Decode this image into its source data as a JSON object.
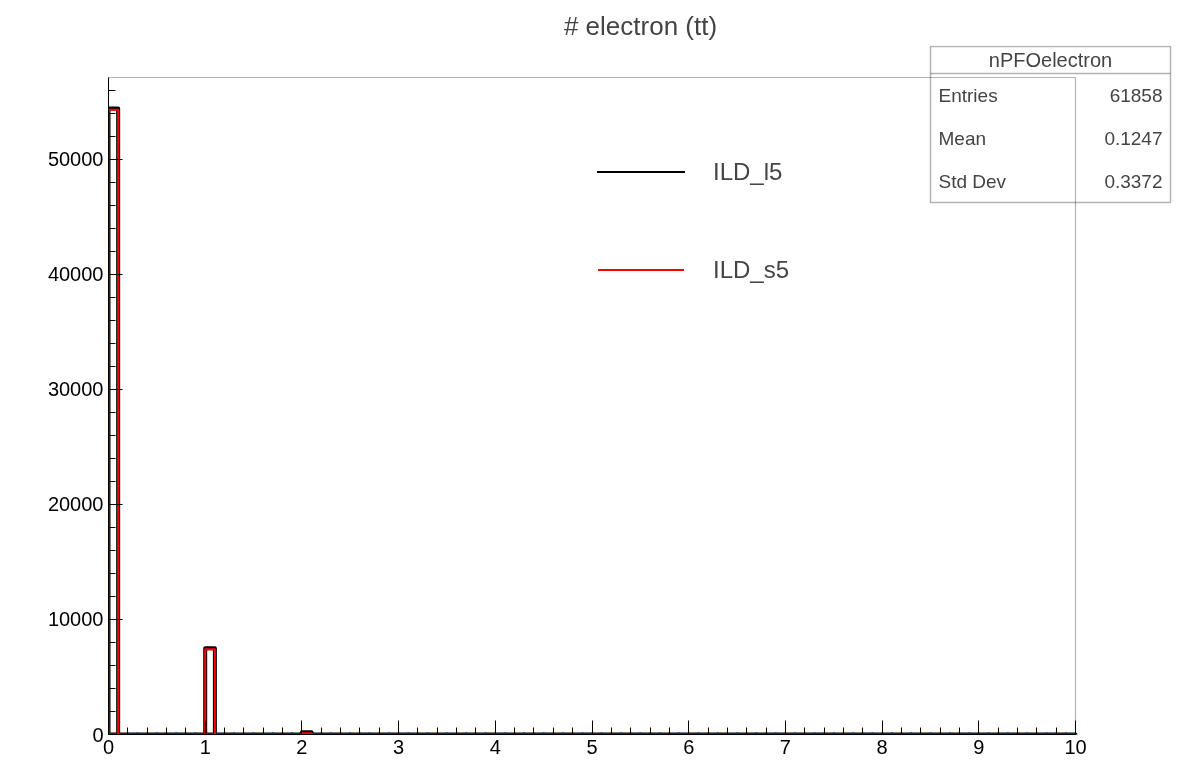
{
  "chart_data": {
    "type": "histogram",
    "title": "# electron (tt)",
    "bins": [
      0,
      0.1,
      0.2,
      0.3,
      0.4,
      0.5,
      0.6,
      0.7,
      0.8,
      0.9,
      1,
      1.1,
      1.2,
      1.3,
      1.4,
      1.5,
      1.6,
      1.7,
      1.8,
      1.9,
      2,
      2.1,
      2.2,
      2.3,
      2.4,
      2.5,
      2.6,
      2.7,
      2.8,
      2.9,
      3,
      3.1,
      3.2,
      3.3,
      3.4,
      3.5,
      3.6,
      3.7,
      3.8,
      3.9,
      4,
      4.1,
      4.2,
      4.3,
      4.4,
      4.5,
      4.6,
      4.7,
      4.8,
      4.9,
      5,
      5.1,
      5.2,
      5.3,
      5.4,
      5.5,
      5.6,
      5.7,
      5.8,
      5.9,
      6,
      6.1,
      6.2,
      6.3,
      6.4,
      6.5,
      6.6,
      6.7,
      6.8,
      6.9,
      7,
      7.1,
      7.2,
      7.3,
      7.4,
      7.5,
      7.6,
      7.7,
      7.8,
      7.9,
      8,
      8.1,
      8.2,
      8.3,
      8.4,
      8.5,
      8.6,
      8.7,
      8.8,
      8.9,
      9,
      9.1,
      9.2,
      9.3,
      9.4,
      9.5,
      9.6,
      9.7,
      9.8,
      9.9,
      10
    ],
    "series": [
      {
        "name": "ILD_l5",
        "color": "#000000",
        "values": [
          54400,
          0,
          0,
          0,
          0,
          0,
          0,
          0,
          0,
          0,
          7500,
          0,
          0,
          0,
          0,
          0,
          0,
          0,
          0,
          0,
          200,
          0,
          0,
          0,
          0,
          0,
          0,
          0,
          0,
          0,
          0,
          0,
          0,
          0,
          0,
          0,
          0,
          0,
          0,
          0,
          0,
          0,
          0,
          0,
          0,
          0,
          0,
          0,
          0,
          0,
          0,
          0,
          0,
          0,
          0,
          0,
          0,
          0,
          0,
          0,
          0,
          0,
          0,
          0,
          0,
          0,
          0,
          0,
          0,
          0,
          0,
          0,
          0,
          0,
          0,
          0,
          0,
          0,
          0,
          0,
          0,
          0,
          0,
          0,
          0,
          0,
          0,
          0,
          0,
          0,
          0,
          0,
          0,
          0,
          0,
          0,
          0,
          0,
          0,
          0
        ]
      },
      {
        "name": "ILD_s5",
        "color": "#ff0000",
        "values": [
          54300,
          0,
          0,
          0,
          0,
          0,
          0,
          0,
          0,
          0,
          7400,
          0,
          0,
          0,
          0,
          0,
          0,
          0,
          0,
          0,
          100,
          0,
          0,
          0,
          0,
          0,
          0,
          0,
          0,
          0,
          0,
          0,
          0,
          0,
          0,
          0,
          0,
          0,
          0,
          0,
          0,
          0,
          0,
          0,
          0,
          0,
          0,
          0,
          0,
          0,
          0,
          0,
          0,
          0,
          0,
          0,
          0,
          0,
          0,
          0,
          0,
          0,
          0,
          0,
          0,
          0,
          0,
          0,
          0,
          0,
          0,
          0,
          0,
          0,
          0,
          0,
          0,
          0,
          0,
          0,
          0,
          0,
          0,
          0,
          0,
          0,
          0,
          0,
          0,
          0,
          0,
          0,
          0,
          0,
          0,
          0,
          0,
          0,
          0,
          0
        ]
      }
    ],
    "xlim": [
      0,
      10
    ],
    "xticks": [
      0,
      1,
      2,
      3,
      4,
      5,
      6,
      7,
      8,
      9,
      10
    ],
    "ylim": [
      0,
      57100
    ],
    "yticks": [
      0,
      10000,
      20000,
      30000,
      40000,
      50000
    ],
    "grid": false,
    "legend": "top right",
    "annotations": [
      "nPFOelectron",
      "Entries",
      "61858",
      "Mean",
      "0.1247",
      "Std Dev",
      "0.3372"
    ]
  }
}
